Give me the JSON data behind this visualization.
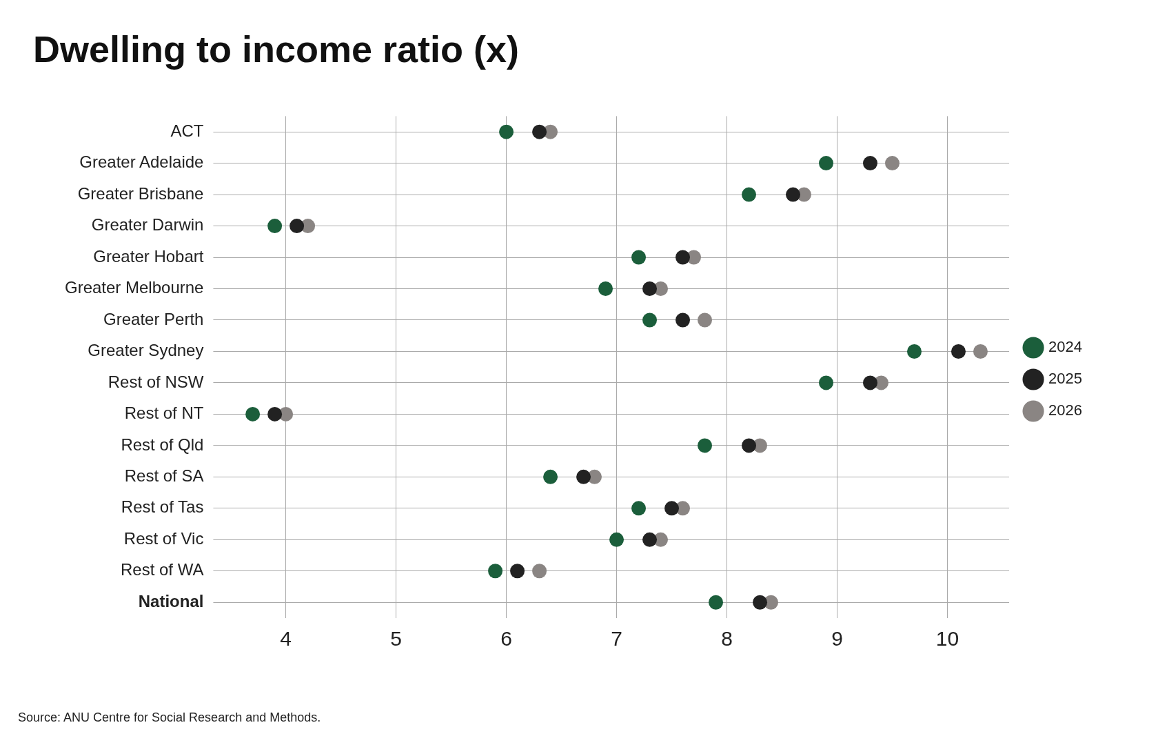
{
  "chart_data": {
    "type": "scatter",
    "title": "Dwelling to income ratio (x)",
    "categories": [
      "ACT",
      "Greater Adelaide",
      "Greater Brisbane",
      "Greater Darwin",
      "Greater Hobart",
      "Greater Melbourne",
      "Greater Perth",
      "Greater Sydney",
      "Rest of NSW",
      "Rest of NT",
      "Rest of Qld",
      "Rest of SA",
      "Rest of Tas",
      "Rest of Vic",
      "Rest of WA",
      "National"
    ],
    "series": [
      {
        "name": "2024",
        "color": "#1b5e3b",
        "values": [
          6.0,
          8.9,
          8.2,
          3.9,
          7.2,
          6.9,
          7.3,
          9.7,
          8.9,
          3.7,
          7.8,
          6.4,
          7.2,
          7.0,
          5.9,
          7.9
        ]
      },
      {
        "name": "2025",
        "color": "#222222",
        "values": [
          6.3,
          9.3,
          8.6,
          4.1,
          7.6,
          7.3,
          7.6,
          10.1,
          9.3,
          3.9,
          8.2,
          6.7,
          7.5,
          7.3,
          6.1,
          8.3
        ]
      },
      {
        "name": "2026",
        "color": "#8a8583",
        "values": [
          6.4,
          9.5,
          8.7,
          4.2,
          7.7,
          7.4,
          7.8,
          10.3,
          9.4,
          4.0,
          8.3,
          6.8,
          7.6,
          7.4,
          6.3,
          8.4
        ]
      }
    ],
    "xlim": [
      3.43,
      10.56
    ],
    "xticks": [
      4,
      5,
      6,
      7,
      8,
      9,
      10
    ],
    "orientation": "horizontal",
    "grid": true,
    "legend": "right",
    "marker": "circle",
    "annotations": [
      "Source: ANU Centre for Social Research and Methods."
    ]
  }
}
